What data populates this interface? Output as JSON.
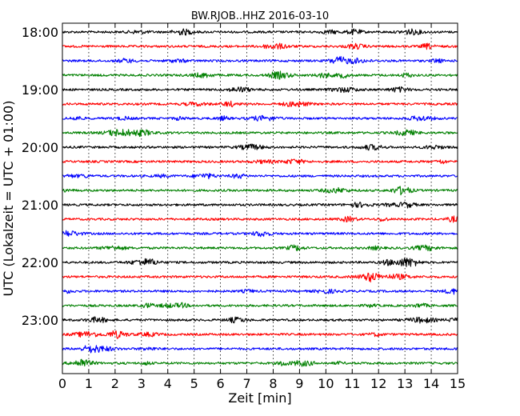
{
  "chart_data": {
    "type": "line",
    "title": "BW.RJOB..HHZ 2016-03-10",
    "xlabel": "Zeit  [min]",
    "ylabel": "UTC (Lokalzeit = UTC + 01:00)",
    "xlim": [
      0,
      15
    ],
    "x_ticks": [
      "0",
      "1",
      "2",
      "3",
      "4",
      "5",
      "6",
      "7",
      "8",
      "9",
      "10",
      "11",
      "12",
      "13",
      "14",
      "15"
    ],
    "y_ticks": [
      "18:00",
      "19:00",
      "20:00",
      "21:00",
      "22:00",
      "23:00"
    ],
    "grid": "vertical dotted",
    "trace_interval_minutes": 15,
    "color_cycle": [
      "#000000",
      "#ff0000",
      "#0000ff",
      "#008000"
    ],
    "rows": [
      {
        "start": "18:00",
        "color": "#000000"
      },
      {
        "start": "18:15",
        "color": "#ff0000"
      },
      {
        "start": "18:30",
        "color": "#0000ff"
      },
      {
        "start": "18:45",
        "color": "#008000"
      },
      {
        "start": "19:00",
        "color": "#000000"
      },
      {
        "start": "19:15",
        "color": "#ff0000"
      },
      {
        "start": "19:30",
        "color": "#0000ff"
      },
      {
        "start": "19:45",
        "color": "#008000"
      },
      {
        "start": "20:00",
        "color": "#000000"
      },
      {
        "start": "20:15",
        "color": "#ff0000"
      },
      {
        "start": "20:30",
        "color": "#0000ff"
      },
      {
        "start": "20:45",
        "color": "#008000"
      },
      {
        "start": "21:00",
        "color": "#000000"
      },
      {
        "start": "21:15",
        "color": "#ff0000"
      },
      {
        "start": "21:30",
        "color": "#0000ff"
      },
      {
        "start": "21:45",
        "color": "#008000"
      },
      {
        "start": "22:00",
        "color": "#000000"
      },
      {
        "start": "22:15",
        "color": "#ff0000"
      },
      {
        "start": "22:30",
        "color": "#0000ff"
      },
      {
        "start": "22:45",
        "color": "#008000"
      },
      {
        "start": "23:00",
        "color": "#000000"
      },
      {
        "start": "23:15",
        "color": "#ff0000"
      },
      {
        "start": "23:30",
        "color": "#0000ff"
      },
      {
        "start": "23:45",
        "color": "#008000"
      }
    ]
  }
}
